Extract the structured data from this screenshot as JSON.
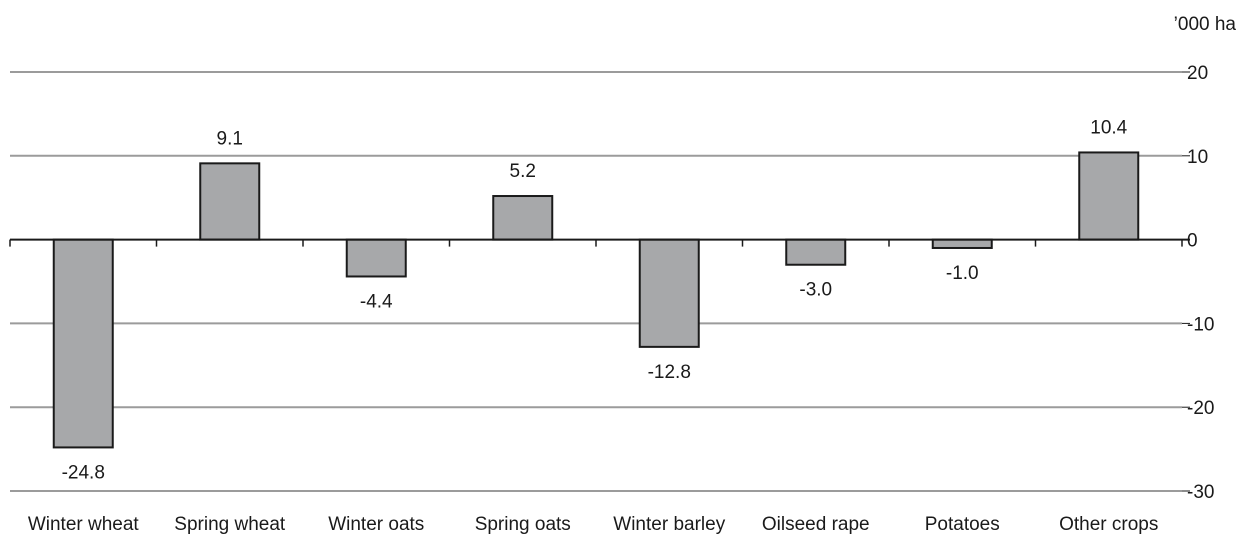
{
  "chart_data": {
    "type": "bar",
    "title": "",
    "xlabel": "",
    "ylabel": "",
    "unit_label": "’000 ha",
    "categories": [
      "Winter wheat",
      "Spring wheat",
      "Winter oats",
      "Spring oats",
      "Winter barley",
      "Oilseed rape",
      "Potatoes",
      "Other crops"
    ],
    "values": [
      -24.8,
      9.1,
      -4.4,
      5.2,
      -12.8,
      -3.0,
      -1.0,
      10.4
    ],
    "value_labels": [
      "-24.8",
      "9.1",
      "-4.4",
      "5.2",
      "-12.8",
      "-3.0",
      "-1.0",
      "10.4"
    ],
    "yticks": [
      20,
      10,
      0,
      -10,
      -20,
      -30
    ],
    "ytick_labels": [
      "20",
      "10",
      "0",
      "-10",
      "-20",
      "-30"
    ],
    "ylim": [
      -30,
      20
    ],
    "grid": true,
    "y_axis_side": "right",
    "colors": {
      "bar_fill": "#a7a8aa",
      "bar_stroke": "#1a1a1a",
      "gridline": "#9b9b9b",
      "axis": "#1a1a1a",
      "text": "#1a1a1a"
    }
  }
}
